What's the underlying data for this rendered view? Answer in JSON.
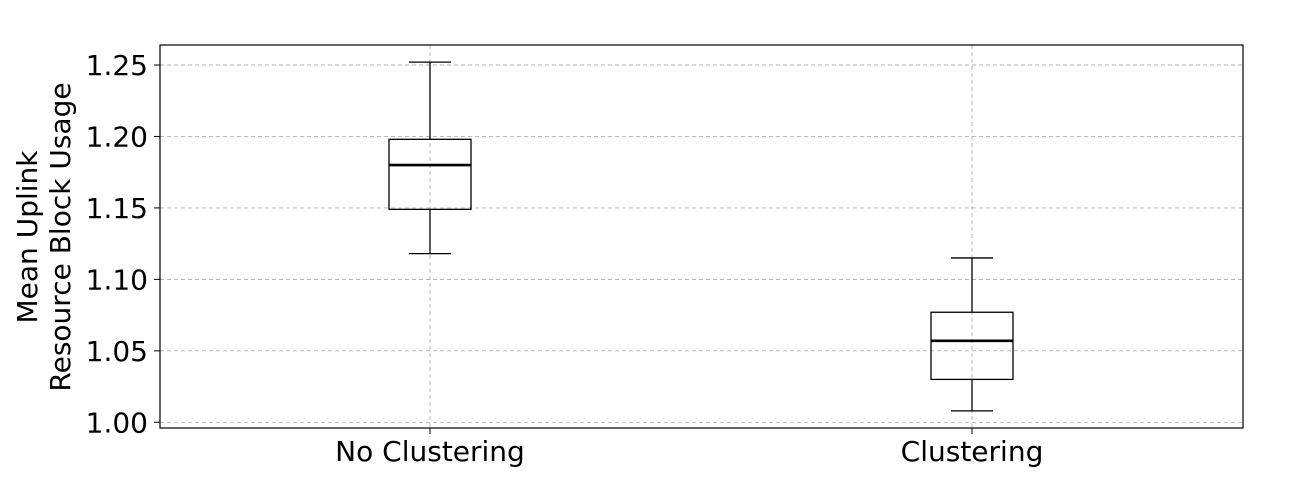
{
  "chart_data": {
    "type": "boxplot",
    "title": "",
    "xlabel": "",
    "ylabel_lines": [
      "Mean Uplink",
      "Resource Block Usage"
    ],
    "categories": [
      "No Clustering",
      "Clustering"
    ],
    "boxes": [
      {
        "category": "No Clustering",
        "whisker_low": 1.118,
        "q1": 1.149,
        "median": 1.18,
        "q3": 1.198,
        "whisker_high": 1.252
      },
      {
        "category": "Clustering",
        "whisker_low": 1.008,
        "q1": 1.03,
        "median": 1.057,
        "q3": 1.077,
        "whisker_high": 1.115
      }
    ],
    "y_ticks": [
      "1.00",
      "1.05",
      "1.10",
      "1.15",
      "1.20",
      "1.25"
    ],
    "ylim": [
      0.996,
      1.264
    ],
    "grid": true,
    "grid_style": "dashed",
    "colors": {
      "box": "#000000",
      "median": "#000000",
      "grid": "#b0b0b0"
    }
  }
}
